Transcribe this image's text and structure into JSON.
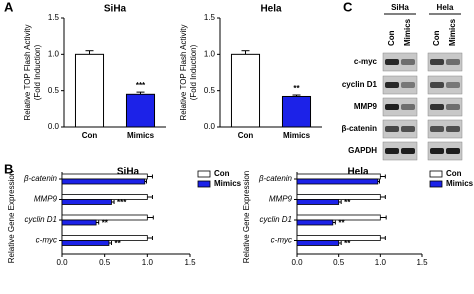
{
  "panel_labels": [
    "A",
    "B",
    "C"
  ],
  "chart_data": [
    {
      "type": "bar",
      "title": "SiHa",
      "ylabel": [
        "Relative TOP Flash Activity",
        "(Fold Induction)"
      ],
      "categories": [
        "Con",
        "Mimics"
      ],
      "values": [
        1.0,
        0.45
      ],
      "errors": [
        0.05,
        0.03
      ],
      "colors": [
        "#ffffff",
        "#1c22e8"
      ],
      "annotations": [
        null,
        "***"
      ],
      "ylim": [
        0,
        1.5
      ],
      "yticks": [
        {
          "value": 0,
          "label": "0.0"
        },
        {
          "value": 0.5,
          "label": "0.5"
        },
        {
          "value": 1,
          "label": "1.0"
        },
        {
          "value": 1.5,
          "label": "1.5"
        }
      ]
    },
    {
      "type": "bar",
      "title": "Hela",
      "ylabel": [
        "Relative TOP Flash Activity",
        "(Fold Induction)"
      ],
      "categories": [
        "Con",
        "Mimics"
      ],
      "values": [
        1.0,
        0.42
      ],
      "errors": [
        0.05,
        0.02
      ],
      "colors": [
        "#ffffff",
        "#1c22e8"
      ],
      "annotations": [
        null,
        "**"
      ],
      "ylim": [
        0,
        1.5
      ],
      "yticks": [
        {
          "value": 0,
          "label": "0.0"
        },
        {
          "value": 0.5,
          "label": "0.5"
        },
        {
          "value": 1,
          "label": "1.0"
        },
        {
          "value": 1.5,
          "label": "1.5"
        }
      ]
    },
    {
      "type": "hbar",
      "title": "SiHa",
      "ylabel": "Relative Gene Expression",
      "categories": [
        "β-catenin",
        "MMP9",
        "cyclin D1",
        "c-myc"
      ],
      "series": [
        {
          "name": "Con",
          "color": "#ffffff",
          "values": [
            1,
            1,
            1,
            1
          ],
          "errors": [
            0.06,
            0.06,
            0.07,
            0.06
          ],
          "annotations": [
            null,
            null,
            null,
            null
          ]
        },
        {
          "name": "Mimics",
          "color": "#1c22e8",
          "values": [
            0.97,
            0.58,
            0.4,
            0.55
          ],
          "errors": [
            0.02,
            0.03,
            0.03,
            0.03
          ],
          "annotations": [
            null,
            "***",
            "**",
            "**"
          ]
        }
      ],
      "xlim": [
        0,
        1.5
      ],
      "xticks": [
        {
          "value": 0,
          "label": "0.0"
        },
        {
          "value": 0.5,
          "label": "0.5"
        },
        {
          "value": 1,
          "label": "1.0"
        },
        {
          "value": 1.5,
          "label": "1.5"
        }
      ]
    },
    {
      "type": "hbar",
      "title": "Hela",
      "ylabel": "Relative Gene Expression",
      "categories": [
        "β-catenin",
        "MMP9",
        "cyclin D1",
        "c-myc"
      ],
      "series": [
        {
          "name": "Con",
          "color": "#ffffff",
          "values": [
            1,
            1,
            1,
            1
          ],
          "errors": [
            0.06,
            0.06,
            0.07,
            0.06
          ],
          "annotations": [
            null,
            null,
            null,
            null
          ]
        },
        {
          "name": "Mimics",
          "color": "#1c22e8",
          "values": [
            0.97,
            0.5,
            0.43,
            0.5
          ],
          "errors": [
            0.02,
            0.03,
            0.03,
            0.03
          ],
          "annotations": [
            null,
            "**",
            "**",
            "**"
          ]
        }
      ],
      "xlim": [
        0,
        1.5
      ],
      "xticks": [
        {
          "value": 0,
          "label": "0.0"
        },
        {
          "value": 0.5,
          "label": "0.5"
        },
        {
          "value": 1,
          "label": "1.0"
        },
        {
          "value": 1.5,
          "label": "1.5"
        }
      ]
    }
  ],
  "blot": {
    "groups": [
      "SiHa",
      "Hela"
    ],
    "lanes": [
      "Con",
      "Mimics",
      "Con",
      "Mimics"
    ],
    "proteins": [
      "c-myc",
      "cyclin D1",
      "MMP9",
      "β-catenin",
      "GAPDH"
    ]
  }
}
